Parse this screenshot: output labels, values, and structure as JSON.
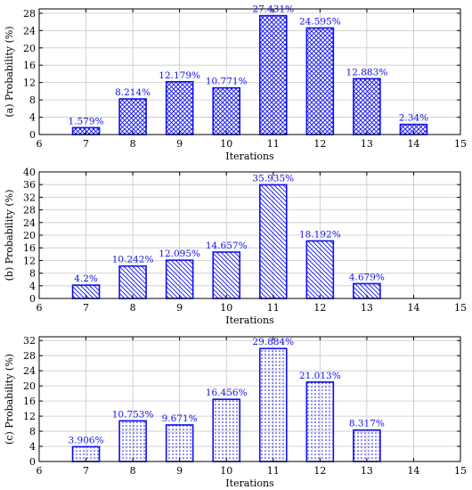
{
  "colors": {
    "bar": "#1010ee",
    "grid": "#c8c8c8",
    "axis": "#000000"
  },
  "chart_data": [
    {
      "type": "bar",
      "panel": "a",
      "ylabel": "(a) Probability (%)",
      "xlabel": "Iterations",
      "xlim": [
        6,
        15
      ],
      "ylim": [
        0,
        29
      ],
      "xticks": [
        6,
        7,
        8,
        9,
        10,
        11,
        12,
        13,
        14,
        15
      ],
      "yticks": [
        0,
        4,
        8,
        12,
        16,
        20,
        24,
        28
      ],
      "pattern": "crosshatch",
      "grid": true,
      "x": [
        7,
        8,
        9,
        10,
        11,
        12,
        13,
        14
      ],
      "values": [
        1.579,
        8.214,
        12.179,
        10.771,
        27.431,
        24.595,
        12.883,
        2.34
      ],
      "labels": [
        "1.579%",
        "8.214%",
        "12.179%",
        "10.771%",
        "27.431%",
        "24.595%",
        "12.883%",
        "2.34%"
      ]
    },
    {
      "type": "bar",
      "panel": "b",
      "ylabel": "(b) Probability (%)",
      "xlabel": "Iterations",
      "xlim": [
        6,
        15
      ],
      "ylim": [
        0,
        40
      ],
      "xticks": [
        6,
        7,
        8,
        9,
        10,
        11,
        12,
        13,
        14,
        15
      ],
      "yticks": [
        0,
        4,
        8,
        12,
        16,
        20,
        24,
        28,
        32,
        36,
        40
      ],
      "pattern": "diagonal",
      "grid": true,
      "x": [
        7,
        8,
        9,
        10,
        11,
        12,
        13
      ],
      "values": [
        4.2,
        10.242,
        12.095,
        14.657,
        35.935,
        18.192,
        4.679
      ],
      "labels": [
        "4.2%",
        "10.242%",
        "12.095%",
        "14.657%",
        "35.935%",
        "18.192%",
        "4.679%"
      ]
    },
    {
      "type": "bar",
      "panel": "c",
      "ylabel": "(c) Probability (%)",
      "xlabel": "Iterations",
      "xlim": [
        6,
        15
      ],
      "ylim": [
        0,
        33
      ],
      "xticks": [
        6,
        7,
        8,
        9,
        10,
        11,
        12,
        13,
        14,
        15
      ],
      "yticks": [
        0,
        4,
        8,
        12,
        16,
        20,
        24,
        28,
        32
      ],
      "pattern": "dots",
      "grid": true,
      "x": [
        7,
        8,
        9,
        10,
        11,
        12,
        13
      ],
      "values": [
        3.906,
        10.753,
        9.671,
        16.456,
        29.884,
        21.013,
        8.317
      ],
      "labels": [
        "3.906%",
        "10.753%",
        "9.671%",
        "16.456%",
        "29.884%",
        "21.013%",
        "8.317%"
      ]
    }
  ]
}
